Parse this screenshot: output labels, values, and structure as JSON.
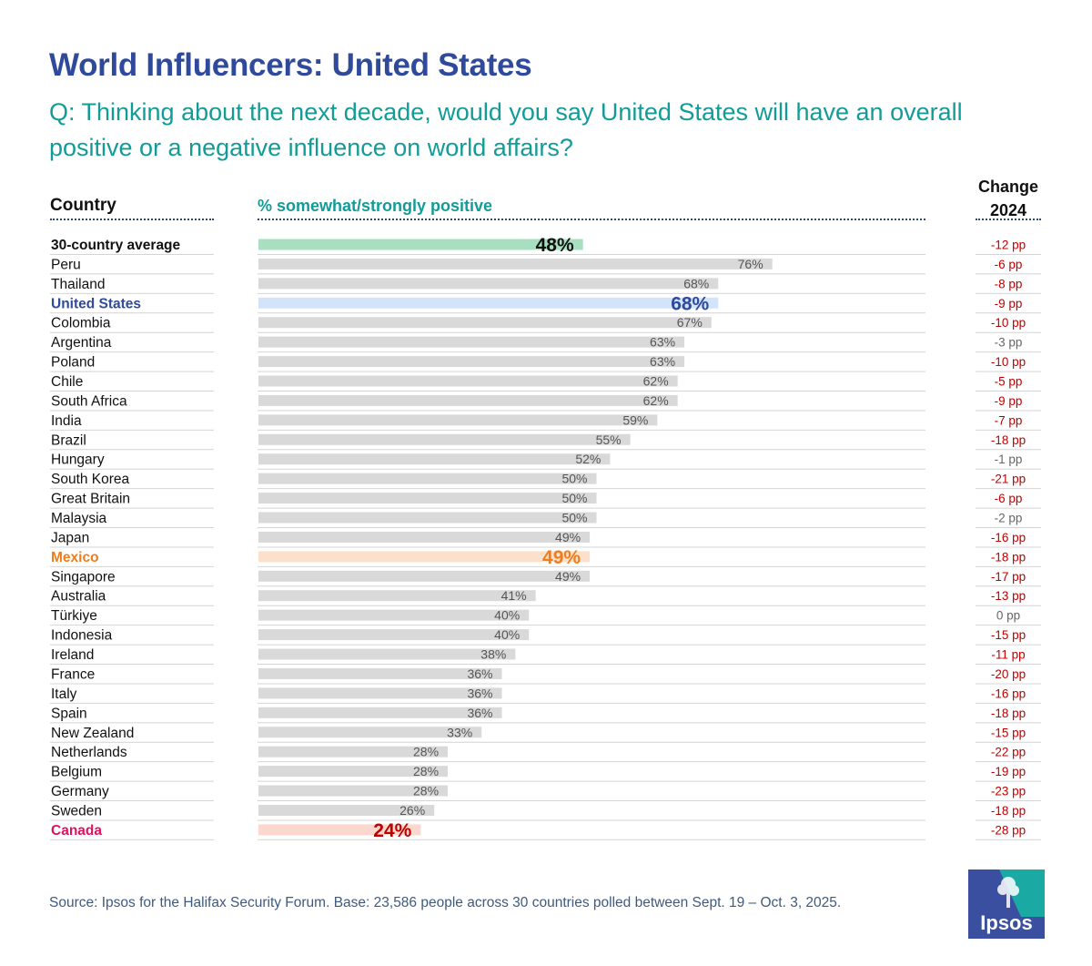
{
  "title": "World Influencers: United States",
  "question": "Q: Thinking about the next decade, would you say United States will have an overall positive or a negative influence on world affairs?",
  "headers": {
    "country": "Country",
    "metric": "% somewhat/strongly positive",
    "change_line1": "Change",
    "change_line2": "2024"
  },
  "source": "Source:  Ipsos for the Halifax Security Forum. Base: 23,586 people across 30 countries polled between Sept. 19 – Oct. 3, 2025.",
  "logo_text": "Ipsos",
  "colors": {
    "title": "#2f4a9b",
    "teal": "#139c97",
    "bar_default": "#d9d9d9",
    "bar_average": "#a8dfc0",
    "bar_us": "#d3e4fa",
    "bar_mexico": "#fde0cc",
    "bar_canada": "#fcd7cd",
    "label_us": "#2f4a9b",
    "label_mexico": "#f07d19",
    "label_canada": "#c00000",
    "text_canada": "#e0115f",
    "change_negative": "#c00000",
    "change_neutral": "#666666",
    "logo_blue": "#3b4fa0",
    "logo_teal": "#1aa9a3"
  },
  "chart_data": {
    "type": "bar",
    "orientation": "horizontal",
    "xlabel": "% somewhat/strongly positive",
    "xlim": [
      0,
      100
    ],
    "unit": "%",
    "categories": [
      "30-country average",
      "Peru",
      "Thailand",
      "United States",
      "Colombia",
      "Argentina",
      "Poland",
      "Chile",
      "South Africa",
      "India",
      "Brazil",
      "Hungary",
      "South Korea",
      "Great Britain",
      "Malaysia",
      "Japan",
      "Mexico",
      "Singapore",
      "Australia",
      "Türkiye",
      "Indonesia",
      "Ireland",
      "France",
      "Italy",
      "Spain",
      "New Zealand",
      "Netherlands",
      "Belgium",
      "Germany",
      "Sweden",
      "Canada"
    ],
    "values": [
      48,
      76,
      68,
      68,
      67,
      63,
      63,
      62,
      62,
      59,
      55,
      52,
      50,
      50,
      50,
      49,
      49,
      49,
      41,
      40,
      40,
      38,
      36,
      36,
      36,
      33,
      28,
      28,
      28,
      26,
      24
    ],
    "labels": [
      "48%",
      "76%",
      "68%",
      "68%",
      "67%",
      "63%",
      "63%",
      "62%",
      "62%",
      "59%",
      "55%",
      "52%",
      "50%",
      "50%",
      "50%",
      "49%",
      "49%",
      "49%",
      "41%",
      "40%",
      "40%",
      "38%",
      "36%",
      "36%",
      "36%",
      "33%",
      "28%",
      "28%",
      "28%",
      "26%",
      "24%"
    ],
    "change_2024": [
      "-12 pp",
      "-6 pp",
      "-8 pp",
      "-9 pp",
      "-10 pp",
      "-3 pp",
      "-10 pp",
      "-5 pp",
      "-9 pp",
      "-7 pp",
      "-18 pp",
      "-1 pp",
      "-21 pp",
      "-6 pp",
      "-2 pp",
      "-16 pp",
      "-18 pp",
      "-17 pp",
      "-13 pp",
      "0 pp",
      "-15 pp",
      "-11 pp",
      "-20 pp",
      "-16 pp",
      "-18 pp",
      "-15 pp",
      "-22 pp",
      "-19 pp",
      "-23 pp",
      "-18 pp",
      "-28 pp"
    ],
    "change_values": [
      -12,
      -6,
      -8,
      -9,
      -10,
      -3,
      -10,
      -5,
      -9,
      -7,
      -18,
      -1,
      -21,
      -6,
      -2,
      -16,
      -18,
      -17,
      -13,
      0,
      -15,
      -11,
      -20,
      -16,
      -18,
      -15,
      -22,
      -19,
      -23,
      -18,
      -28
    ],
    "highlights": {
      "30-country average": "average",
      "United States": "us",
      "Mexico": "mexico",
      "Canada": "canada"
    }
  }
}
